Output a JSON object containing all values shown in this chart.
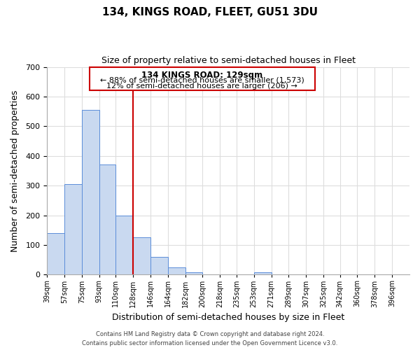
{
  "title": "134, KINGS ROAD, FLEET, GU51 3DU",
  "subtitle": "Size of property relative to semi-detached houses in Fleet",
  "xlabel": "Distribution of semi-detached houses by size in Fleet",
  "ylabel": "Number of semi-detached properties",
  "bar_left_edges": [
    39,
    57,
    75,
    93,
    110,
    128,
    146,
    164,
    182,
    200,
    218,
    235,
    253,
    271,
    289,
    307,
    325,
    342,
    360,
    378
  ],
  "bar_heights": [
    140,
    305,
    555,
    370,
    200,
    125,
    60,
    25,
    8,
    0,
    0,
    0,
    8,
    0,
    0,
    0,
    0,
    0,
    0,
    0
  ],
  "bar_widths": [
    18,
    18,
    18,
    17,
    18,
    18,
    18,
    18,
    18,
    18,
    17,
    18,
    18,
    18,
    18,
    18,
    17,
    18,
    18,
    18
  ],
  "bar_color": "#c9d9f0",
  "bar_edge_color": "#5b8dd9",
  "tick_labels": [
    "39sqm",
    "57sqm",
    "75sqm",
    "93sqm",
    "110sqm",
    "128sqm",
    "146sqm",
    "164sqm",
    "182sqm",
    "200sqm",
    "218sqm",
    "235sqm",
    "253sqm",
    "271sqm",
    "289sqm",
    "307sqm",
    "325sqm",
    "342sqm",
    "360sqm",
    "378sqm",
    "396sqm"
  ],
  "tick_positions": [
    39,
    57,
    75,
    93,
    110,
    128,
    146,
    164,
    182,
    200,
    218,
    235,
    253,
    271,
    289,
    307,
    325,
    342,
    360,
    378,
    396
  ],
  "ylim": [
    0,
    700
  ],
  "yticks": [
    0,
    100,
    200,
    300,
    400,
    500,
    600,
    700
  ],
  "vline_x": 128,
  "vline_color": "#cc0000",
  "annotation_title": "134 KINGS ROAD: 129sqm",
  "annotation_line1": "← 88% of semi-detached houses are smaller (1,573)",
  "annotation_line2": "12% of semi-detached houses are larger (206) →",
  "footer_line1": "Contains HM Land Registry data © Crown copyright and database right 2024.",
  "footer_line2": "Contains public sector information licensed under the Open Government Licence v3.0.",
  "background_color": "#ffffff",
  "grid_color": "#dddddd"
}
